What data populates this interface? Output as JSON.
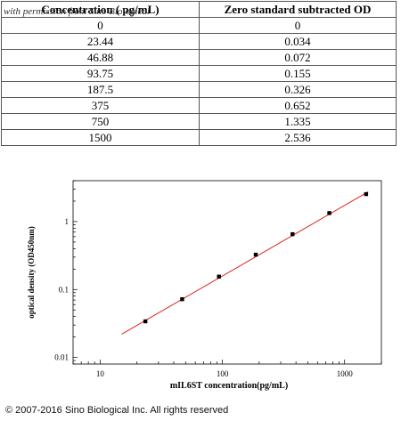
{
  "table": {
    "headers": [
      "Concentration ( pg/mL)",
      "Zero standard subtracted OD"
    ],
    "watermark": "with permission from Sino Biological",
    "rows": [
      [
        "0",
        "0"
      ],
      [
        "23.44",
        "0.034"
      ],
      [
        "46.88",
        "0.072"
      ],
      [
        "93.75",
        "0.155"
      ],
      [
        "187.5",
        "0.326"
      ],
      [
        "375",
        "0.652"
      ],
      [
        "750",
        "1.335"
      ],
      [
        "1500",
        "2.536"
      ]
    ]
  },
  "chart_data": {
    "type": "scatter",
    "xlabel": "mIL6ST concentration(pg/mL)",
    "ylabel": "optical density (OD450nm)",
    "x_scale": "log",
    "y_scale": "log",
    "xlim": [
      6,
      2000
    ],
    "ylim": [
      0.008,
      4
    ],
    "x_ticks": [
      10,
      100,
      1000
    ],
    "x_tick_labels": [
      "10",
      "100",
      "1000"
    ],
    "y_ticks": [
      0.01,
      0.1,
      1
    ],
    "y_tick_labels": [
      "0.01",
      "0.1",
      "1"
    ],
    "grid": false,
    "series": [
      {
        "x": [
          23.44,
          46.88,
          93.75,
          187.5,
          375,
          750,
          1500
        ],
        "y": [
          0.034,
          0.072,
          0.155,
          0.326,
          0.652,
          1.335,
          2.536
        ],
        "marker_color": "#000000"
      }
    ],
    "fit_line": {
      "x": [
        15,
        1560
      ],
      "y": [
        0.022,
        2.75
      ],
      "color": "#e0201a"
    }
  },
  "footer": {
    "copyright": "© 2007-2016 Sino Biological Inc. All rights reserved"
  }
}
